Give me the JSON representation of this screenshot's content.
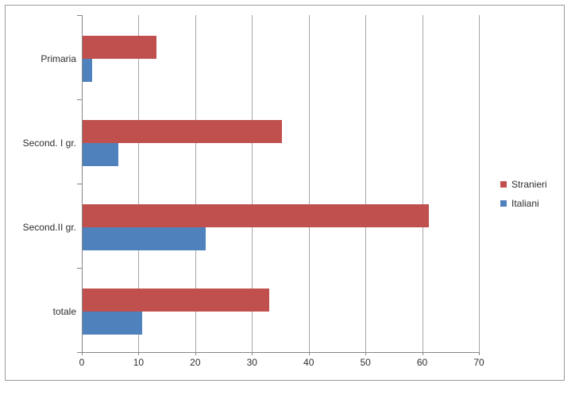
{
  "chart_data": {
    "type": "bar",
    "orientation": "horizontal",
    "title": "",
    "xlabel": "",
    "ylabel": "",
    "categories": [
      "Primaria",
      "Second. I gr.",
      "Second.II gr.",
      "totale"
    ],
    "series": [
      {
        "name": "Stranieri",
        "color": "#C0504D",
        "values": [
          13.2,
          35.3,
          61.2,
          33.0
        ]
      },
      {
        "name": "Italiani",
        "color": "#4F81BD",
        "values": [
          1.8,
          6.4,
          21.8,
          10.6
        ]
      }
    ],
    "xlim": [
      0,
      70
    ],
    "x_ticks": [
      0,
      10,
      20,
      30,
      40,
      50,
      60,
      70
    ],
    "grid": true,
    "legend_position": "right",
    "category_order_top_to_bottom": true
  },
  "colors": {
    "series_stranieri": "#C0504D",
    "series_italiani": "#4F81BD",
    "gridline": "#a6a6a6",
    "axis": "#868686",
    "chart_border": "#9b9b9b",
    "text": "#2e2e2e",
    "background": "#ffffff"
  }
}
